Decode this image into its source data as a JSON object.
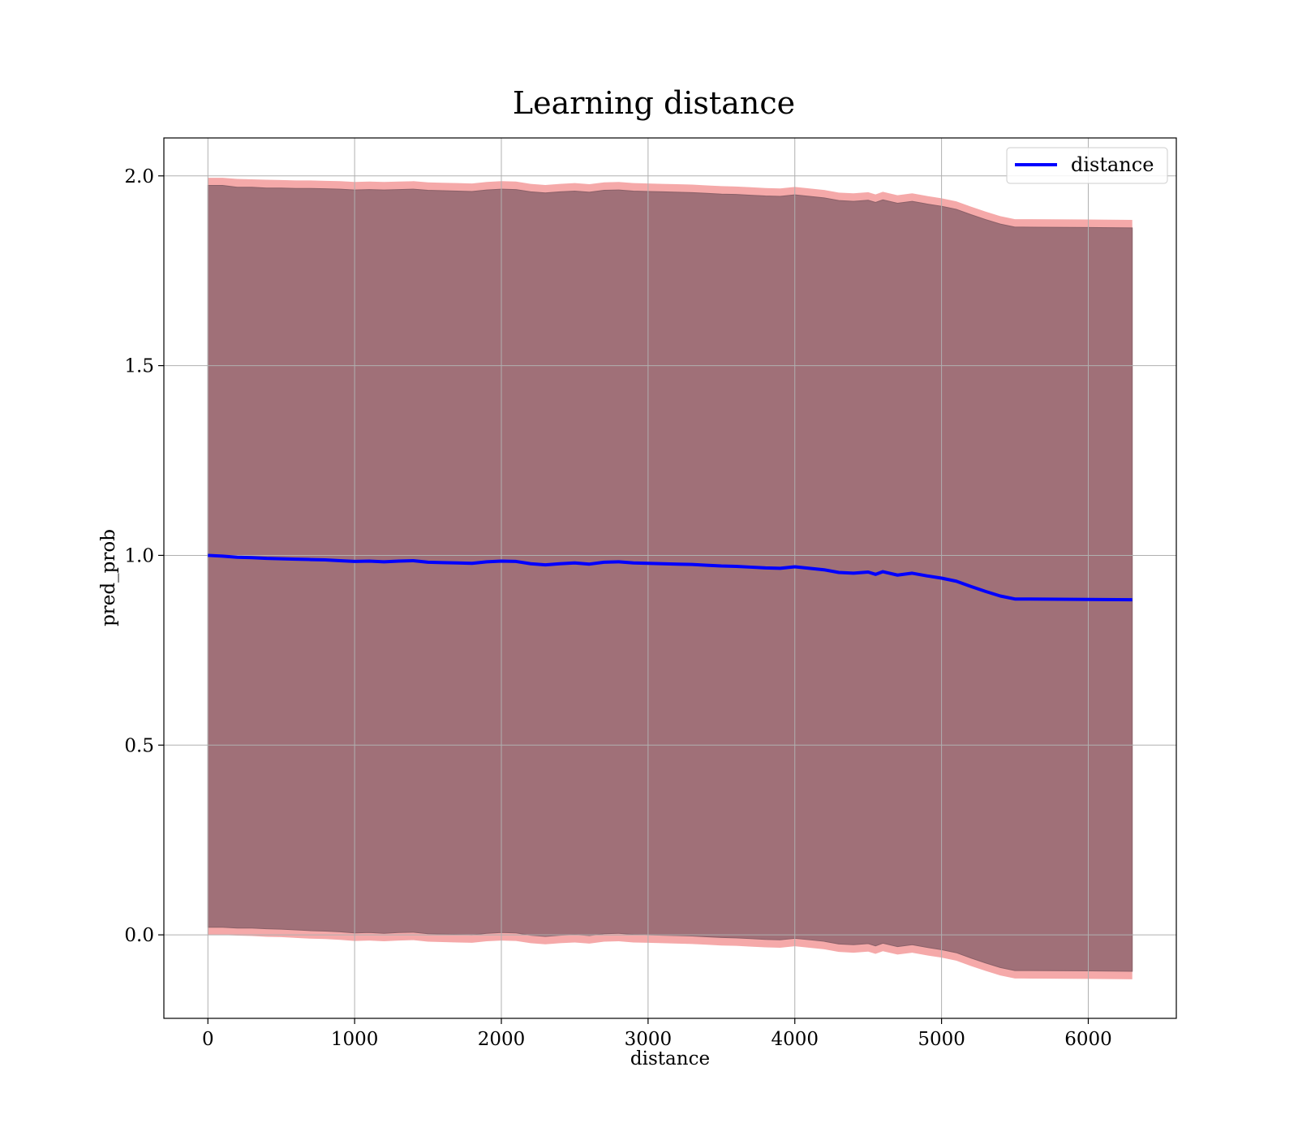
{
  "chart_data": {
    "type": "line",
    "title": "Learning distance",
    "xlabel": "distance",
    "ylabel": "pred_prob",
    "xlim": [
      -300,
      6600
    ],
    "ylim": [
      -0.22,
      2.1
    ],
    "xticks": [
      0,
      1000,
      2000,
      3000,
      4000,
      5000,
      6000
    ],
    "xtick_labels": [
      "0",
      "1000",
      "2000",
      "3000",
      "4000",
      "5000",
      "6000"
    ],
    "yticks": [
      0.0,
      0.5,
      1.0,
      1.5,
      2.0
    ],
    "ytick_labels": [
      "0.0",
      "0.5",
      "1.0",
      "1.5",
      "2.0"
    ],
    "grid": true,
    "legend": {
      "position": "top-right",
      "entries": [
        "distance"
      ]
    },
    "colors": {
      "line": "#0000ff",
      "band_outer": "#f4a0a0",
      "band_inner": "#a07078",
      "grid": "#b0b0b0"
    },
    "series": [
      {
        "name": "distance",
        "x": [
          0,
          100,
          200,
          300,
          400,
          500,
          600,
          700,
          800,
          900,
          1000,
          1100,
          1200,
          1300,
          1400,
          1500,
          1600,
          1700,
          1800,
          1900,
          2000,
          2100,
          2200,
          2300,
          2400,
          2500,
          2600,
          2700,
          2800,
          2900,
          3000,
          3100,
          3200,
          3300,
          3400,
          3500,
          3600,
          3700,
          3800,
          3900,
          4000,
          4100,
          4200,
          4300,
          4400,
          4500,
          4550,
          4600,
          4700,
          4800,
          4900,
          5000,
          5100,
          5200,
          5300,
          5400,
          5500,
          5550,
          6000,
          6300
        ],
        "y": [
          1.0,
          0.998,
          0.995,
          0.994,
          0.992,
          0.991,
          0.99,
          0.989,
          0.988,
          0.986,
          0.984,
          0.985,
          0.983,
          0.985,
          0.986,
          0.982,
          0.981,
          0.98,
          0.979,
          0.983,
          0.985,
          0.984,
          0.978,
          0.975,
          0.978,
          0.98,
          0.977,
          0.982,
          0.983,
          0.98,
          0.979,
          0.978,
          0.977,
          0.976,
          0.974,
          0.972,
          0.971,
          0.969,
          0.967,
          0.966,
          0.97,
          0.966,
          0.962,
          0.955,
          0.953,
          0.956,
          0.95,
          0.957,
          0.948,
          0.953,
          0.946,
          0.94,
          0.932,
          0.918,
          0.905,
          0.893,
          0.885,
          0.885,
          0.884,
          0.883
        ],
        "band_inner_upper": [
          1.975,
          1.975,
          1.97,
          1.97,
          1.968,
          1.968,
          1.967,
          1.967,
          1.966,
          1.965,
          1.963,
          1.964,
          1.963,
          1.964,
          1.965,
          1.962,
          1.961,
          1.96,
          1.959,
          1.963,
          1.965,
          1.964,
          1.958,
          1.955,
          1.958,
          1.96,
          1.957,
          1.962,
          1.963,
          1.96,
          1.959,
          1.958,
          1.957,
          1.956,
          1.954,
          1.952,
          1.951,
          1.949,
          1.947,
          1.946,
          1.95,
          1.946,
          1.942,
          1.935,
          1.933,
          1.936,
          1.93,
          1.937,
          1.928,
          1.933,
          1.926,
          1.92,
          1.912,
          1.898,
          1.885,
          1.873,
          1.865,
          1.865,
          1.864,
          1.863
        ],
        "band_inner_lower": [
          0.02,
          0.02,
          0.018,
          0.018,
          0.016,
          0.015,
          0.013,
          0.011,
          0.01,
          0.008,
          0.005,
          0.006,
          0.004,
          0.006,
          0.007,
          0.003,
          0.002,
          0.001,
          0.0,
          0.004,
          0.006,
          0.005,
          -0.001,
          -0.004,
          -0.001,
          0.001,
          -0.002,
          0.003,
          0.004,
          0.001,
          0.0,
          -0.001,
          -0.002,
          -0.003,
          -0.005,
          -0.007,
          -0.008,
          -0.01,
          -0.012,
          -0.013,
          -0.009,
          -0.013,
          -0.017,
          -0.024,
          -0.026,
          -0.023,
          -0.029,
          -0.022,
          -0.031,
          -0.026,
          -0.033,
          -0.039,
          -0.047,
          -0.061,
          -0.074,
          -0.086,
          -0.094,
          -0.094,
          -0.095,
          -0.096
        ],
        "band_outer_upper": [
          1.995,
          1.995,
          1.992,
          1.991,
          1.99,
          1.989,
          1.988,
          1.988,
          1.987,
          1.986,
          1.984,
          1.985,
          1.984,
          1.985,
          1.986,
          1.983,
          1.982,
          1.981,
          1.98,
          1.984,
          1.986,
          1.985,
          1.979,
          1.976,
          1.979,
          1.981,
          1.978,
          1.983,
          1.984,
          1.981,
          1.98,
          1.979,
          1.978,
          1.977,
          1.975,
          1.973,
          1.972,
          1.97,
          1.968,
          1.967,
          1.971,
          1.967,
          1.963,
          1.956,
          1.954,
          1.957,
          1.951,
          1.958,
          1.949,
          1.954,
          1.947,
          1.941,
          1.933,
          1.919,
          1.906,
          1.894,
          1.886,
          1.886,
          1.885,
          1.884
        ],
        "band_outer_lower": [
          0.0,
          0.0,
          -0.002,
          -0.003,
          -0.005,
          -0.006,
          -0.008,
          -0.01,
          -0.011,
          -0.013,
          -0.016,
          -0.015,
          -0.017,
          -0.015,
          -0.014,
          -0.018,
          -0.019,
          -0.02,
          -0.021,
          -0.017,
          -0.015,
          -0.016,
          -0.022,
          -0.025,
          -0.022,
          -0.02,
          -0.023,
          -0.018,
          -0.017,
          -0.02,
          -0.021,
          -0.022,
          -0.023,
          -0.024,
          -0.026,
          -0.028,
          -0.029,
          -0.031,
          -0.033,
          -0.034,
          -0.03,
          -0.034,
          -0.038,
          -0.045,
          -0.047,
          -0.044,
          -0.05,
          -0.043,
          -0.052,
          -0.047,
          -0.054,
          -0.06,
          -0.068,
          -0.082,
          -0.095,
          -0.107,
          -0.115,
          -0.115,
          -0.116,
          -0.117
        ]
      }
    ]
  }
}
